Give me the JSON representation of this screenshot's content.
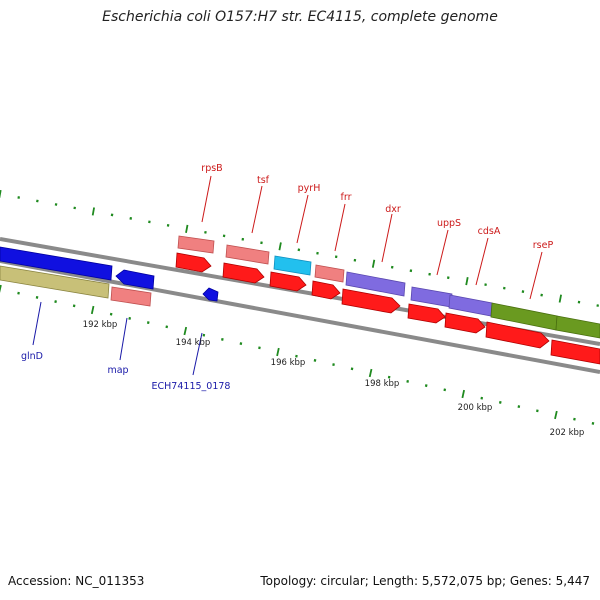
{
  "title": "Escherichia coli O157:H7 str. EC4115, complete genome",
  "footer": {
    "accession": "Accession: NC_011353",
    "summary": "Topology: circular; Length: 5,572,075 bp; Genes: 5,447"
  },
  "colors": {
    "backbone": "#8a8a8a",
    "tick": "#1f8a1f",
    "gene_red": "#ff1a1a",
    "gene_pink": "#f08080",
    "gene_blue": "#1010e0",
    "gene_cyan": "#22c0ee",
    "gene_purple": "#7f6be0",
    "gene_olive_green": "#6a9a20",
    "gene_khaki": "#c8c078",
    "label_top": "#cc1a1a",
    "label_bottom": "#1a1aa8"
  },
  "scale_labels": [
    "192 kbp",
    "194 kbp",
    "196 kbp",
    "198 kbp",
    "200 kbp",
    "202 kbp"
  ],
  "genes_top_labels": [
    "rpsB",
    "tsf",
    "pyrH",
    "frr",
    "dxr",
    "uppS",
    "cdsA",
    "rseP"
  ],
  "genes_bottom_labels": [
    "glnD",
    "map",
    "ECH74115_0178"
  ]
}
